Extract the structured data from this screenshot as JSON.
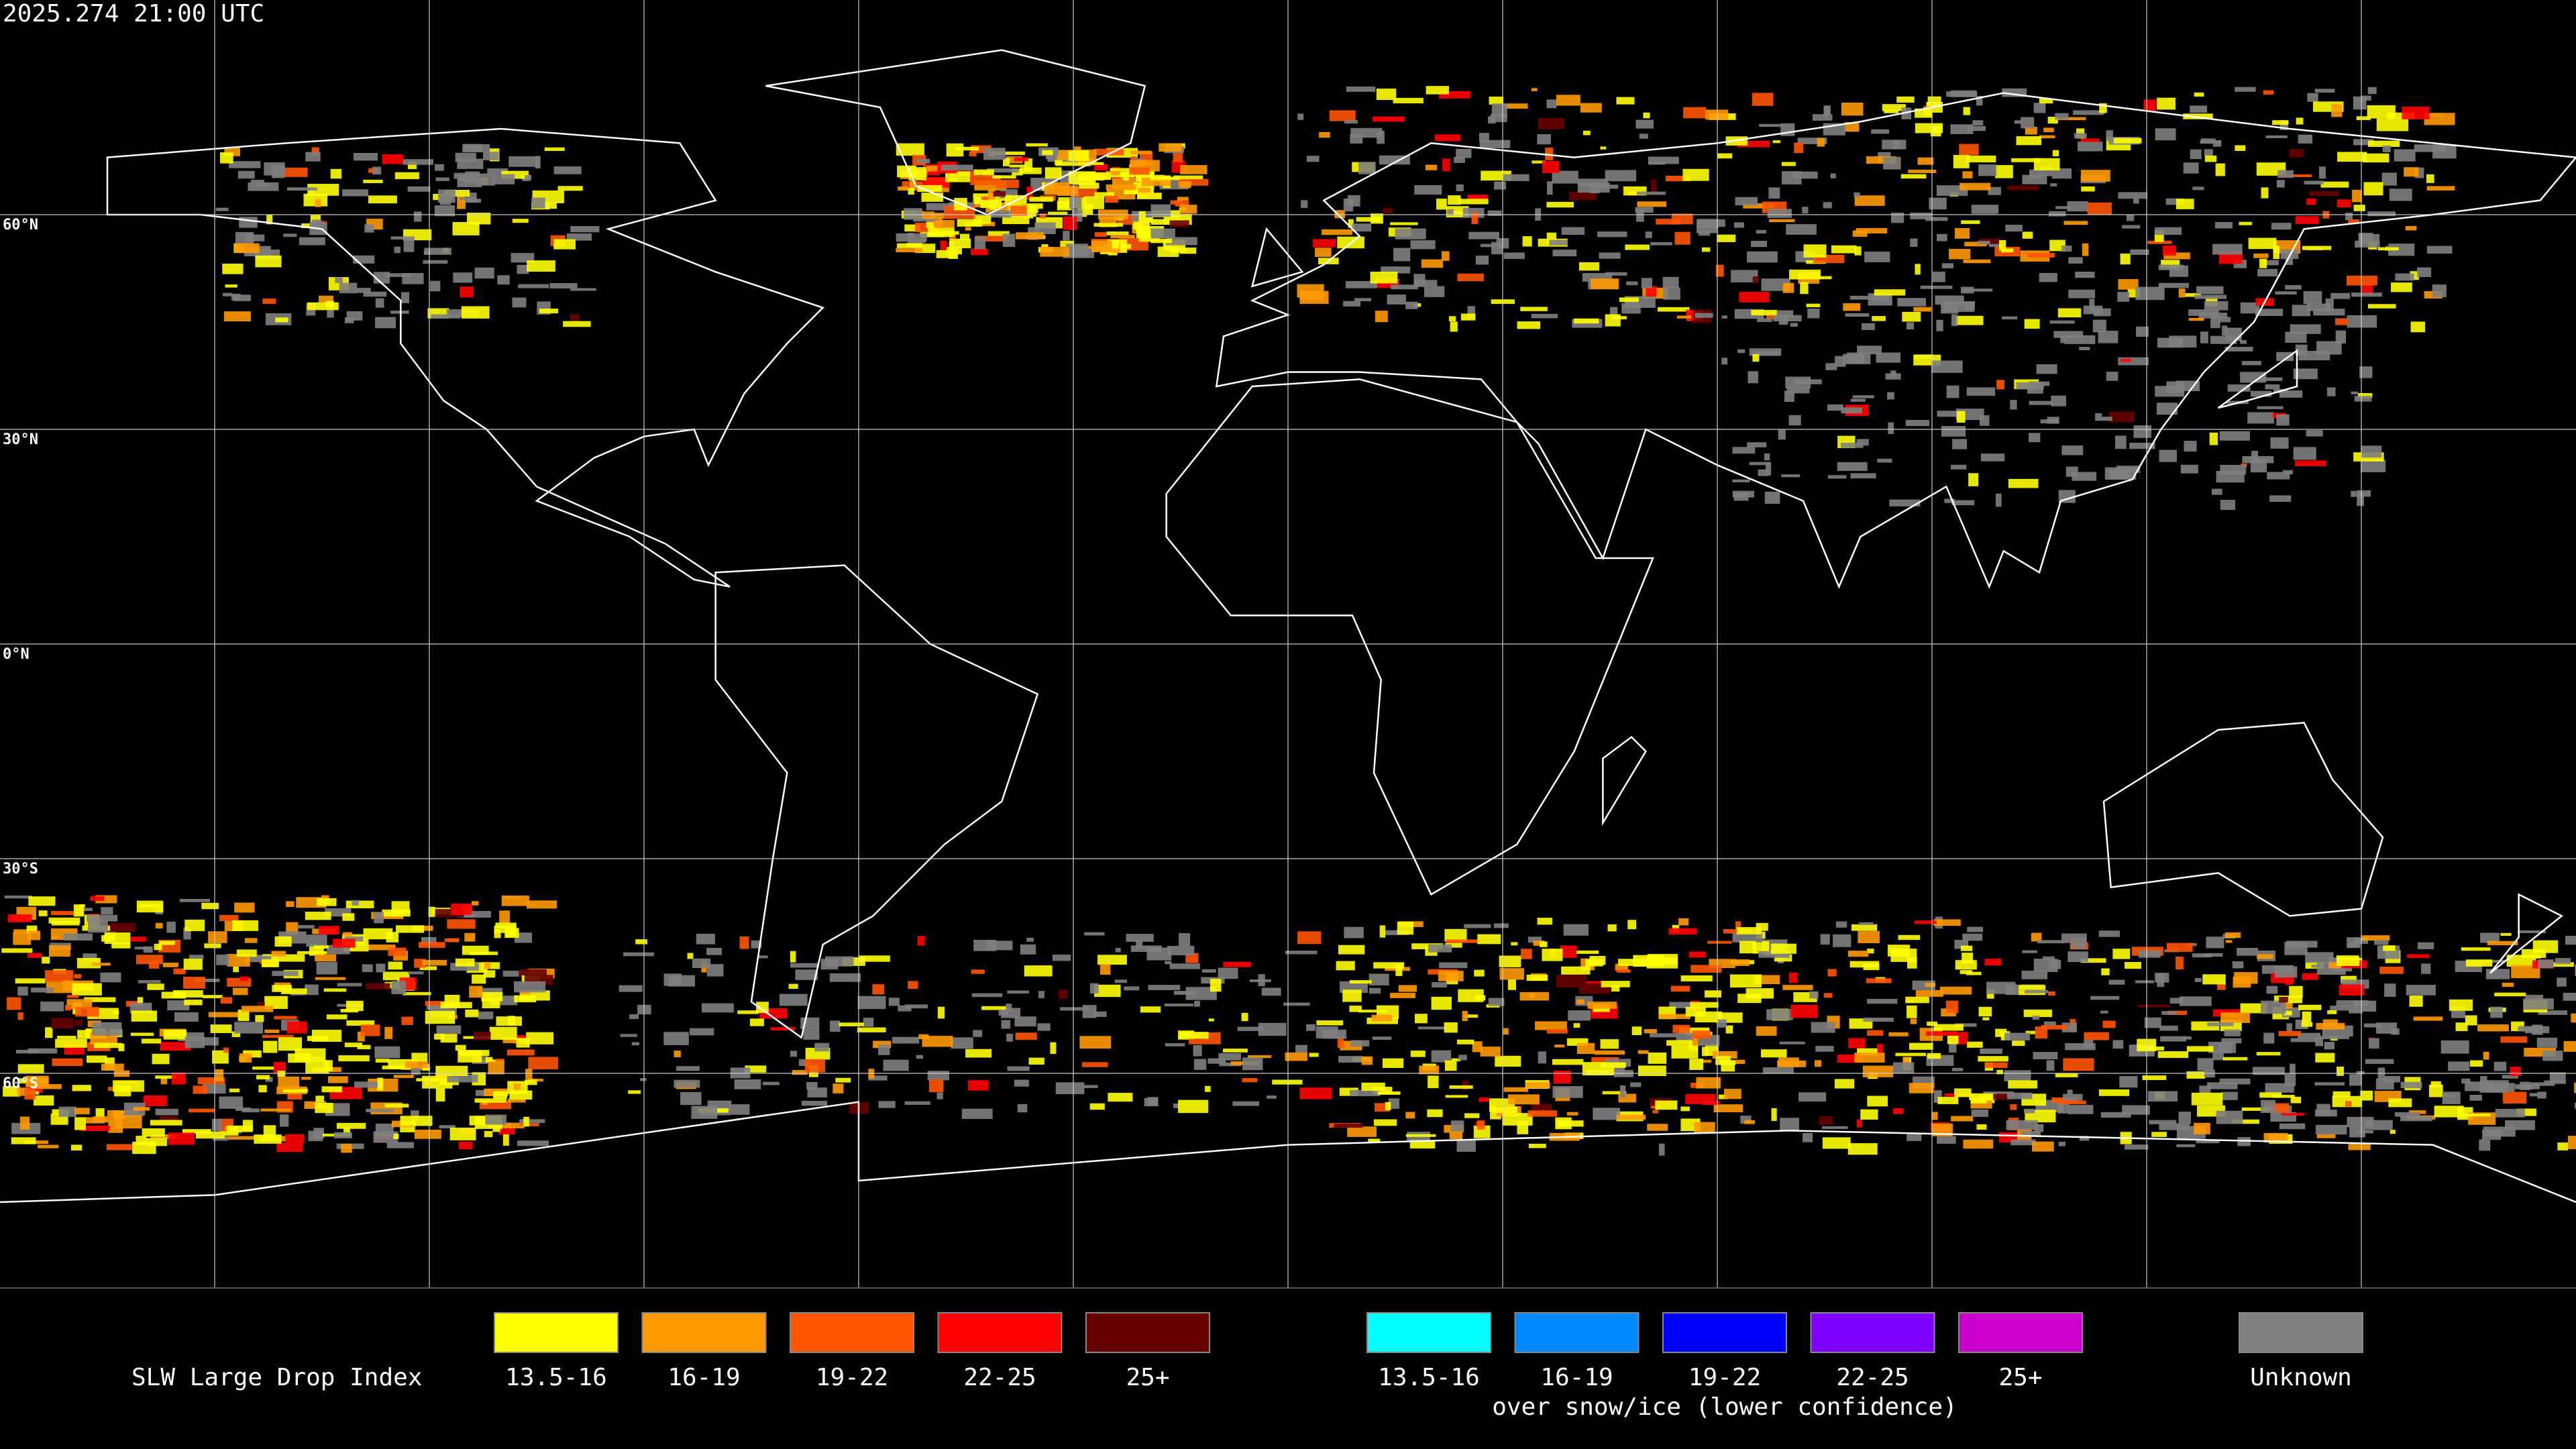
{
  "timestamp": "2025.274 21:00 UTC",
  "latitude_labels": [
    "60°N",
    "30°N",
    "0°N",
    "30°S",
    "60°S"
  ],
  "legend": {
    "title": "SLW Large Drop Index",
    "items": [
      {
        "label": "13.5-16",
        "color": "#ffff00"
      },
      {
        "label": "16-19",
        "color": "#ff9900"
      },
      {
        "label": "19-22",
        "color": "#ff5500"
      },
      {
        "label": "22-25",
        "color": "#ff0000"
      },
      {
        "label": "25+",
        "color": "#660000"
      }
    ],
    "snow_ice_items": [
      {
        "label": "13.5-16",
        "color": "#00ffff"
      },
      {
        "label": "16-19",
        "color": "#0088ff"
      },
      {
        "label": "19-22",
        "color": "#0000ff"
      },
      {
        "label": "22-25",
        "color": "#7f00ff"
      },
      {
        "label": "25+",
        "color": "#cc00cc"
      }
    ],
    "snow_ice_caption": "over snow/ice (lower confidence)",
    "unknown": {
      "label": "Unknown",
      "color": "#808080"
    }
  }
}
